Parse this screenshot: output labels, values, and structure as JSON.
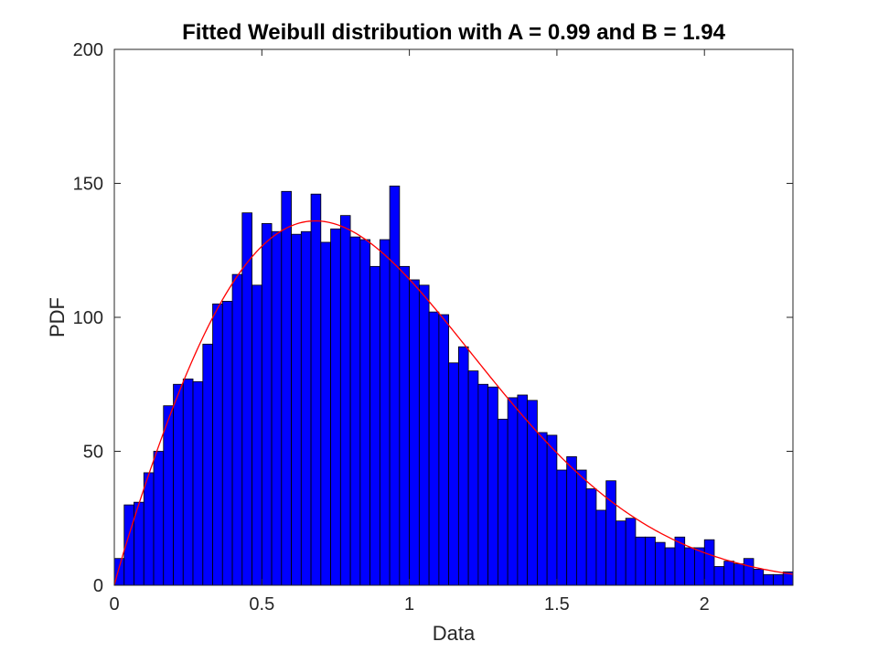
{
  "chart_data": {
    "type": "bar",
    "title": "Fitted Weibull distribution with A = 0.99 and B = 1.94",
    "xlabel": "Data",
    "ylabel": "PDF",
    "xlim": [
      0,
      2.3
    ],
    "ylim": [
      0,
      200
    ],
    "xticks": [
      0,
      0.5,
      1,
      1.5,
      2
    ],
    "yticks": [
      0,
      50,
      100,
      150,
      200
    ],
    "xtick_labels": [
      "0",
      "0.5",
      "1",
      "1.5",
      "2"
    ],
    "ytick_labels": [
      "0",
      "50",
      "100",
      "150",
      "200"
    ],
    "bin_width": 0.0333,
    "bin_centers": [
      0.0167,
      0.05,
      0.0833,
      0.1167,
      0.15,
      0.1833,
      0.2167,
      0.25,
      0.2833,
      0.3167,
      0.35,
      0.3833,
      0.4167,
      0.45,
      0.4833,
      0.5167,
      0.55,
      0.5833,
      0.6167,
      0.65,
      0.6833,
      0.7167,
      0.75,
      0.7833,
      0.8167,
      0.85,
      0.8833,
      0.9167,
      0.95,
      0.9833,
      1.0167,
      1.05,
      1.0833,
      1.1167,
      1.15,
      1.1833,
      1.2167,
      1.25,
      1.2833,
      1.3167,
      1.35,
      1.3833,
      1.4167,
      1.45,
      1.4833,
      1.5167,
      1.55,
      1.5833,
      1.6167,
      1.65,
      1.6833,
      1.7167,
      1.75,
      1.7833,
      1.8167,
      1.85,
      1.8833,
      1.9167,
      1.95,
      1.9833,
      2.0167,
      2.05,
      2.0833,
      2.1167,
      2.15,
      2.1833,
      2.2167,
      2.25,
      2.2833
    ],
    "bar_values": [
      10,
      30,
      31,
      42,
      50,
      67,
      75,
      77,
      76,
      90,
      105,
      106,
      116,
      139,
      112,
      135,
      132,
      147,
      131,
      132,
      146,
      128,
      133,
      138,
      130,
      129,
      119,
      129,
      149,
      119,
      114,
      112,
      102,
      101,
      83,
      89,
      80,
      75,
      74,
      62,
      70,
      71,
      69,
      57,
      56,
      43,
      48,
      43,
      36,
      28,
      39,
      24,
      25,
      18,
      18,
      16,
      14,
      18,
      14,
      14,
      17,
      7,
      9,
      8,
      10,
      6,
      4,
      4,
      5
    ],
    "bar_color": "#0000ff",
    "bar_edge_color": "#000000",
    "fit_curve": {
      "distribution": "Weibull",
      "A": 0.99,
      "B": 1.94,
      "color": "#ff0000"
    },
    "grid": false,
    "legend": "none"
  }
}
